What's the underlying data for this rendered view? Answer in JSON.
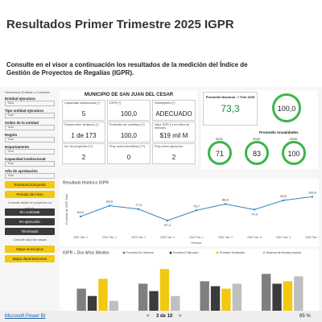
{
  "header": {
    "title": "Resultados Primer Trimestre 2025 IGPR",
    "subtitle": "Consulte en el visor a continuación los resultados de la medición del Índice de Gestión de Proyectos de Regalías (IGPR)."
  },
  "sidebar": {
    "heading": "Seleccione Entidad a Consultar",
    "filters": [
      {
        "label": "Entidad ejecutora",
        "value": "Todo"
      },
      {
        "label": "Tipo entidad ejecutora",
        "value": "Todo"
      },
      {
        "label": "Orden de la entidad",
        "value": "Todo"
      },
      {
        "label": "Región",
        "value": "Todo"
      },
      {
        "label": "Departamento",
        "value": "Todo"
      },
      {
        "label": "Capacidad institucional",
        "value": "Todo"
      },
      {
        "label": "Año de aprobación",
        "value": "Todo"
      }
    ],
    "buttons": [
      {
        "label": "Restaura búsqueda",
        "color": "#f2c811"
      },
      {
        "label": "Periodo de inicio",
        "color": "#f2c811"
      },
      {
        "label": "Consulte desde en proyectos un estado"
      },
      {
        "label": "Sin contratar",
        "color": "#3a3a3a"
      },
      {
        "label": "En ejecución",
        "color": "#3a3a3a"
      },
      {
        "label": "Terminado",
        "color": "#3a3a3a"
      },
      {
        "label": "Consulte aquí las mapas"
      },
      {
        "label": "Mapa municipios",
        "color": "#f2c811"
      },
      {
        "label": "Mapa departamentos",
        "color": "#f2c811"
      }
    ]
  },
  "kpis": {
    "title": "MUNICIPIO DE SAN JUAN DEL CESAR",
    "cells": [
      {
        "label": "Capacidad institucional (*)",
        "value": "5"
      },
      {
        "label": "IGPR (*)",
        "value": "100,0"
      },
      {
        "label": "Desempeño (*)",
        "value": "ADECUADO"
      },
      {
        "label": "Puesto entre similares (*)",
        "value": "1 de 173"
      },
      {
        "label": "Promedio de cobertura (*)",
        "value": "100,0"
      },
      {
        "label": "Valor SGR (*) en miles de millones",
        "value": "$19 mil M"
      },
      {
        "label": "No. de proyectos (**)",
        "value": "2"
      },
      {
        "label": "Proy ceros beneficios (***)",
        "value": "0"
      },
      {
        "label": "Proy ceros ejecución",
        "value": "2"
      }
    ]
  },
  "summary": {
    "national": {
      "label": "Promedio Nacional - I Trim 2025",
      "value": "73,3"
    },
    "score": "100,0",
    "annual_title": "Promedio Anualidades",
    "annual": [
      {
        "year": "2021",
        "value": "71"
      },
      {
        "year": "2023",
        "value": "83"
      },
      {
        "year": "2025",
        "value": "100"
      }
    ]
  },
  "chart_data": [
    {
      "type": "line",
      "title": "Resultado Histórico IGPR",
      "x_label": "Periodo",
      "y_label": "Promedio de IGPR Total",
      "color": "#2e86c1",
      "categories": [
        "2022 Trim. 1",
        "2022 Trim. 2",
        "2023 Trim. 1",
        "2023 Trim. 4",
        "2024 Trim. 1",
        "2024 Trim. 2",
        "2024 Trim. 3",
        "2024 Trim. 4",
        "2025 Trim. 1"
      ],
      "values": [
        64.6,
        83.9,
        77.9,
        57.4,
        75.7,
        86.9,
        77.0,
        93.5,
        100.0
      ],
      "value_labels": [
        "64,6",
        "83,9",
        "77,9",
        "57,4",
        "75,7",
        "86,9",
        "77,0",
        "93,5",
        "100,0"
      ],
      "ylim": [
        40,
        115
      ]
    },
    {
      "type": "bar",
      "title": "IGPR – Dos Años Móviles",
      "ylim": [
        0,
        100
      ],
      "series": [
        {
          "name": "Promedio De Cobertura",
          "color": "#7f7f7f",
          "values": [
            45,
            55,
            60,
            75
          ]
        },
        {
          "name": "Promedio D Ejecución",
          "color": "#3b3b3b",
          "values": [
            30,
            40,
            50,
            55
          ]
        },
        {
          "name": "Promedio Terminados",
          "color": "#f2c811",
          "values": [
            65,
            85,
            45,
            60
          ]
        },
        {
          "name": "Reservar de Rendido proyecto",
          "color": "#bfbfbf",
          "values": [
            20,
            30,
            55,
            70
          ]
        }
      ]
    }
  ],
  "footer": {
    "link": "Microsoft Power BI",
    "pager": "3 de 10",
    "zoom": "85 %"
  }
}
